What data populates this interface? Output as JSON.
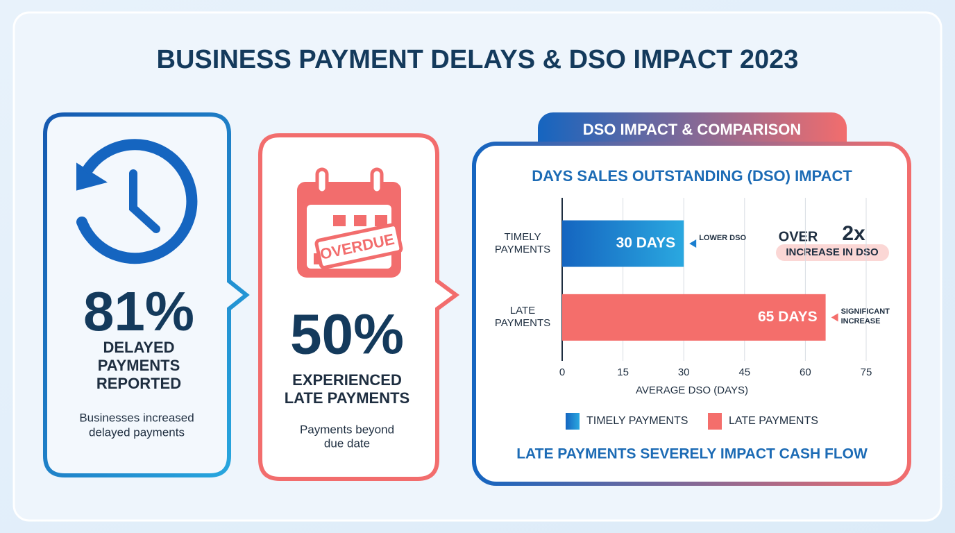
{
  "title": "BUSINESS PAYMENT DELAYS & DSO IMPACT 2023",
  "cards": [
    {
      "stat": "81%",
      "label_lines": [
        "DELAYED",
        "PAYMENTS",
        "REPORTED"
      ],
      "description_lines": [
        "Businesses increased",
        "delayed payments"
      ]
    },
    {
      "stat": "50%",
      "icon_text": "OVERDUE",
      "label_lines": [
        "EXPERIENCED",
        "LATE PAYMENTS"
      ],
      "description_lines": [
        "Payments beyond",
        "due date"
      ]
    }
  ],
  "chart_data": {
    "type": "hbar",
    "panel_title": "DSO IMPACT & COMPARISON",
    "title": "DAYS SALES OUTSTANDING (DSO) IMPACT",
    "categories": [
      "TIMELY PAYMENTS",
      "LATE PAYMENTS"
    ],
    "values": [
      30,
      65
    ],
    "value_labels": [
      "30 DAYS",
      "65 DAYS"
    ],
    "colors": [
      "#1a7fd0",
      "#f46e6b"
    ],
    "bar_notes": [
      "LOWER DSO",
      "SIGNIFICANT INCREASE"
    ],
    "xlim": [
      0,
      75
    ],
    "xticks": [
      0,
      15,
      30,
      45,
      60,
      75
    ],
    "grid": true,
    "xlabel": "AVERAGE DSO (DAYS)",
    "callout": {
      "prefix": "OVER",
      "emphasis": "2x",
      "text": "INCREASE IN DSO"
    },
    "footer": "LATE PAYMENTS SEVERELY IMPACT CASH FLOW"
  }
}
